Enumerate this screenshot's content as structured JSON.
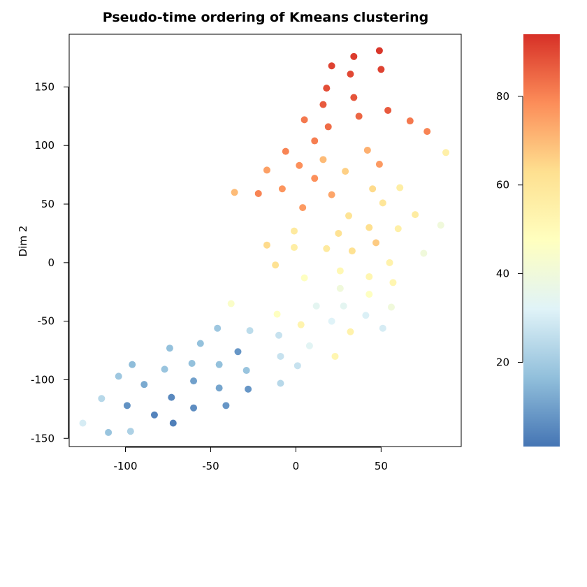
{
  "chart_data": {
    "type": "scatter",
    "title": "Pseudo-time ordering of Kmeans clustering",
    "xlabel": "",
    "ylabel": "Dim 2",
    "xlim": [
      -133,
      97
    ],
    "ylim": [
      -157,
      195
    ],
    "xticks": [
      -100,
      -50,
      0,
      50
    ],
    "xtick_labels": [
      "-100",
      "-50",
      "0",
      "50"
    ],
    "yticks": [
      -150,
      -100,
      -50,
      0,
      50,
      100,
      150
    ],
    "ytick_labels": [
      "-150",
      "-100",
      "-50",
      "0",
      "50",
      "100",
      "150"
    ],
    "colorbar": {
      "range": [
        1,
        94
      ],
      "ticks": [
        20,
        40,
        60,
        80
      ],
      "tick_labels": [
        "20",
        "40",
        "60",
        "80"
      ],
      "colors": [
        "#4575b4",
        "#91bfdb",
        "#e0f3f8",
        "#ffffbf",
        "#fee090",
        "#fc8d59",
        "#d73027"
      ]
    },
    "grid": false,
    "legend": "colorbar-right",
    "points": [
      {
        "x": 49,
        "y": 181,
        "t": 93
      },
      {
        "x": 34,
        "y": 176,
        "t": 92
      },
      {
        "x": 21,
        "y": 168,
        "t": 91
      },
      {
        "x": 32,
        "y": 161,
        "t": 90
      },
      {
        "x": 50,
        "y": 165,
        "t": 91
      },
      {
        "x": 18,
        "y": 149,
        "t": 89
      },
      {
        "x": 34,
        "y": 141,
        "t": 88
      },
      {
        "x": 16,
        "y": 135,
        "t": 87
      },
      {
        "x": 54,
        "y": 130,
        "t": 87
      },
      {
        "x": 37,
        "y": 125,
        "t": 85
      },
      {
        "x": 67,
        "y": 121,
        "t": 82
      },
      {
        "x": 77,
        "y": 112,
        "t": 80
      },
      {
        "x": 5,
        "y": 122,
        "t": 82
      },
      {
        "x": 19,
        "y": 116,
        "t": 84
      },
      {
        "x": 11,
        "y": 104,
        "t": 81
      },
      {
        "x": -6,
        "y": 95,
        "t": 80
      },
      {
        "x": 42,
        "y": 96,
        "t": 72
      },
      {
        "x": 88,
        "y": 94,
        "t": 55
      },
      {
        "x": 16,
        "y": 88,
        "t": 70
      },
      {
        "x": 2,
        "y": 83,
        "t": 78
      },
      {
        "x": 49,
        "y": 84,
        "t": 76
      },
      {
        "x": -17,
        "y": 79,
        "t": 75
      },
      {
        "x": 29,
        "y": 78,
        "t": 66
      },
      {
        "x": 11,
        "y": 72,
        "t": 78
      },
      {
        "x": 61,
        "y": 64,
        "t": 56
      },
      {
        "x": -36,
        "y": 60,
        "t": 70
      },
      {
        "x": -22,
        "y": 59,
        "t": 80
      },
      {
        "x": -8,
        "y": 63,
        "t": 77
      },
      {
        "x": 45,
        "y": 63,
        "t": 64
      },
      {
        "x": 21,
        "y": 58,
        "t": 74
      },
      {
        "x": 51,
        "y": 51,
        "t": 60
      },
      {
        "x": 4,
        "y": 47,
        "t": 76
      },
      {
        "x": 31,
        "y": 40,
        "t": 61
      },
      {
        "x": 70,
        "y": 41,
        "t": 57
      },
      {
        "x": 85,
        "y": 32,
        "t": 40
      },
      {
        "x": 43,
        "y": 30,
        "t": 63
      },
      {
        "x": 60,
        "y": 29,
        "t": 55
      },
      {
        "x": -1,
        "y": 27,
        "t": 58
      },
      {
        "x": 25,
        "y": 25,
        "t": 62
      },
      {
        "x": 47,
        "y": 17,
        "t": 67
      },
      {
        "x": -17,
        "y": 15,
        "t": 64
      },
      {
        "x": -1,
        "y": 13,
        "t": 56
      },
      {
        "x": 18,
        "y": 12,
        "t": 58
      },
      {
        "x": 33,
        "y": 10,
        "t": 62
      },
      {
        "x": 75,
        "y": 8,
        "t": 40
      },
      {
        "x": 55,
        "y": 0,
        "t": 54
      },
      {
        "x": -12,
        "y": -2,
        "t": 62
      },
      {
        "x": 26,
        "y": -7,
        "t": 51
      },
      {
        "x": 43,
        "y": -12,
        "t": 52
      },
      {
        "x": 5,
        "y": -13,
        "t": 47
      },
      {
        "x": 57,
        "y": -17,
        "t": 52
      },
      {
        "x": 26,
        "y": -22,
        "t": 40
      },
      {
        "x": 43,
        "y": -27,
        "t": 47
      },
      {
        "x": -38,
        "y": -35,
        "t": 45
      },
      {
        "x": 12,
        "y": -37,
        "t": 34
      },
      {
        "x": 28,
        "y": -37,
        "t": 34
      },
      {
        "x": 56,
        "y": -38,
        "t": 40
      },
      {
        "x": -11,
        "y": -44,
        "t": 47
      },
      {
        "x": 41,
        "y": -45,
        "t": 31
      },
      {
        "x": 21,
        "y": -50,
        "t": 32
      },
      {
        "x": 3,
        "y": -53,
        "t": 53
      },
      {
        "x": 51,
        "y": -56,
        "t": 30
      },
      {
        "x": -46,
        "y": -56,
        "t": 19
      },
      {
        "x": -27,
        "y": -58,
        "t": 25
      },
      {
        "x": -10,
        "y": -62,
        "t": 27
      },
      {
        "x": 32,
        "y": -59,
        "t": 54
      },
      {
        "x": -56,
        "y": -69,
        "t": 17
      },
      {
        "x": 8,
        "y": -71,
        "t": 33
      },
      {
        "x": -74,
        "y": -73,
        "t": 17
      },
      {
        "x": -34,
        "y": -76,
        "t": 8
      },
      {
        "x": -9,
        "y": -80,
        "t": 27
      },
      {
        "x": 23,
        "y": -80,
        "t": 52
      },
      {
        "x": -96,
        "y": -87,
        "t": 16
      },
      {
        "x": -61,
        "y": -86,
        "t": 17
      },
      {
        "x": -45,
        "y": -87,
        "t": 17
      },
      {
        "x": 1,
        "y": -88,
        "t": 27
      },
      {
        "x": -77,
        "y": -91,
        "t": 18
      },
      {
        "x": -29,
        "y": -92,
        "t": 18
      },
      {
        "x": -104,
        "y": -97,
        "t": 19
      },
      {
        "x": -60,
        "y": -101,
        "t": 10
      },
      {
        "x": -89,
        "y": -104,
        "t": 12
      },
      {
        "x": -9,
        "y": -103,
        "t": 24
      },
      {
        "x": -45,
        "y": -107,
        "t": 11
      },
      {
        "x": -28,
        "y": -108,
        "t": 8
      },
      {
        "x": -114,
        "y": -116,
        "t": 24
      },
      {
        "x": -73,
        "y": -115,
        "t": 5
      },
      {
        "x": -99,
        "y": -122,
        "t": 7
      },
      {
        "x": -60,
        "y": -124,
        "t": 6
      },
      {
        "x": -41,
        "y": -122,
        "t": 8
      },
      {
        "x": -83,
        "y": -130,
        "t": 4
      },
      {
        "x": -125,
        "y": -137,
        "t": 30
      },
      {
        "x": -72,
        "y": -137,
        "t": 3
      },
      {
        "x": -110,
        "y": -145,
        "t": 18
      },
      {
        "x": -97,
        "y": -144,
        "t": 22
      }
    ]
  }
}
